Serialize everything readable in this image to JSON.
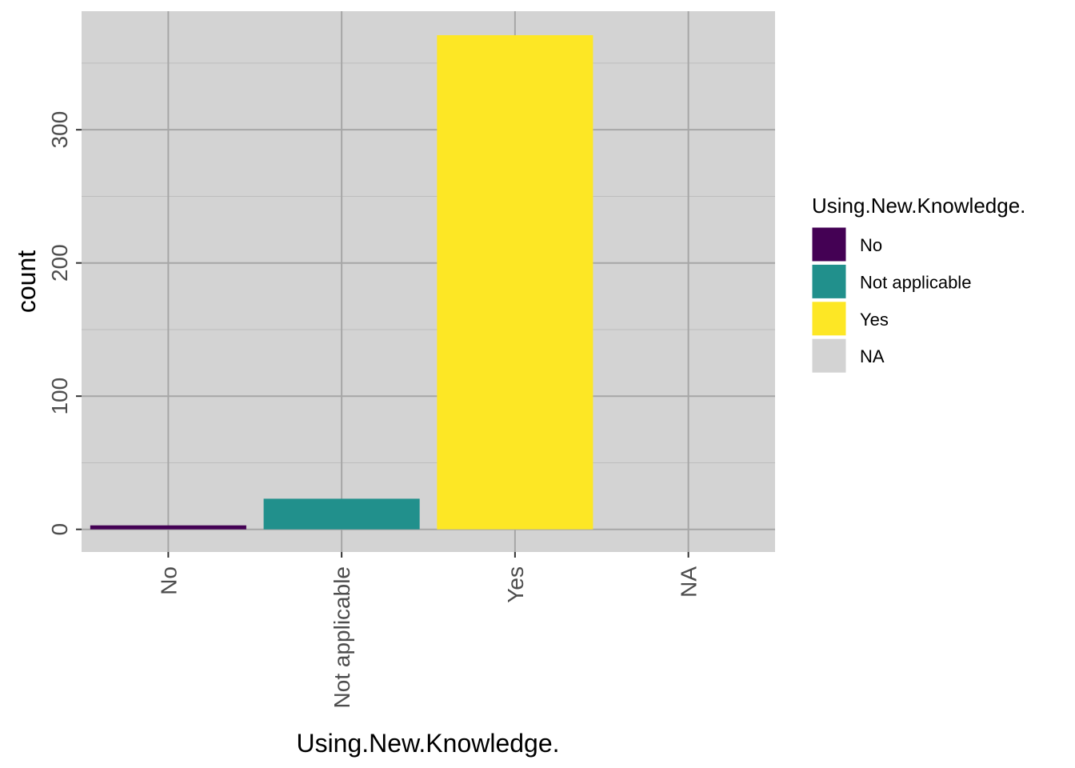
{
  "chart_data": {
    "type": "bar",
    "title": "",
    "xlabel": "Using.New.Knowledge.",
    "ylabel": "count",
    "categories": [
      "No",
      "Not applicable",
      "Yes",
      "NA"
    ],
    "values": [
      3,
      23,
      371,
      0
    ],
    "colors": [
      "#440154",
      "#21908C",
      "#FDE725",
      "#D3D3D3"
    ],
    "ylim": [
      -17,
      389
    ],
    "yticks": [
      0,
      100,
      200,
      300
    ],
    "ytick_labels": [
      "0",
      "100",
      "200",
      "300"
    ],
    "grid": true,
    "panel_background": "#D3D3D3",
    "grid_color": "#A6A6A6",
    "legend": {
      "title": "Using.New.Knowledge.",
      "placement": "right",
      "entries": [
        {
          "label": "No",
          "color": "#440154"
        },
        {
          "label": "Not applicable",
          "color": "#21908C"
        },
        {
          "label": "Yes",
          "color": "#FDE725"
        },
        {
          "label": "NA",
          "color": "#D3D3D3"
        }
      ]
    }
  }
}
